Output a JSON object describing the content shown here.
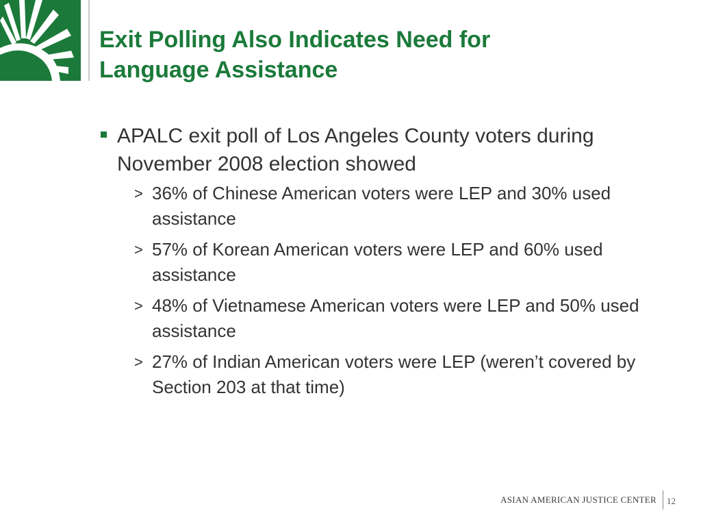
{
  "slide": {
    "title_lines": [
      "Exit Polling Also Indicates Need for",
      "Language Assistance"
    ],
    "main_bullet": "APALC exit poll of Los Angeles County voters during November 2008 election showed",
    "sub_bullet_marker": ">",
    "sub_bullets": [
      "36% of Chinese American voters were LEP and 30% used assistance",
      "57% of Korean American voters were LEP  and 60% used assistance",
      "48% of Vietnamese American voters were LEP and 50% used assistance",
      "27% of Indian American voters were LEP (weren’t covered by Section 203 at that time)"
    ]
  },
  "footer": {
    "organization": "ASIAN AMERICAN JUSTICE CENTER",
    "page_number": "12"
  },
  "logo": {
    "icon": "sunburst-logo-icon"
  },
  "colors": {
    "brand_green": "#1b7a3a",
    "body_text": "#333333",
    "background": "#ffffff"
  }
}
